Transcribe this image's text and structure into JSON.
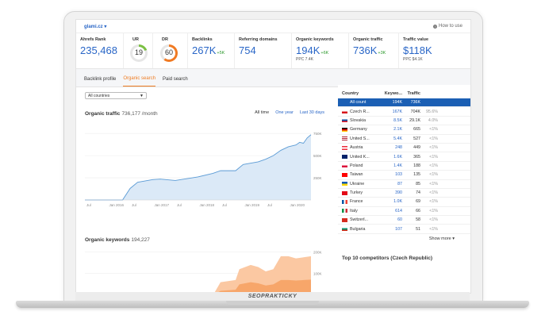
{
  "header": {
    "domain": "glami.cz",
    "how_to_use": "How to use"
  },
  "metrics": {
    "ahrefs_rank": {
      "label": "Ahrefs Rank",
      "value": "235,468"
    },
    "ur": {
      "label": "UR",
      "value": "19",
      "level": 19,
      "color": "#7bc043"
    },
    "dr": {
      "label": "DR",
      "value": "60",
      "level": 60,
      "color": "#f07a23"
    },
    "backlinks": {
      "label": "Backlinks",
      "value": "267K",
      "delta": "+5K"
    },
    "referring_domains": {
      "label": "Referring domains",
      "value": "754"
    },
    "organic_keywords": {
      "label": "Organic keywords",
      "value": "194K",
      "delta": "+6K",
      "sub": "PPC 7.4K"
    },
    "organic_traffic": {
      "label": "Organic traffic",
      "value": "736K",
      "delta": "+3K"
    },
    "traffic_value": {
      "label": "Traffic value",
      "value": "$118K",
      "sub": "PPC $4.1K"
    }
  },
  "tabs": [
    {
      "label": "Backlink profile"
    },
    {
      "label": "Organic search"
    },
    {
      "label": "Paid search"
    }
  ],
  "filter": {
    "value": "All countries"
  },
  "traffic_section": {
    "title": "Organic traffic",
    "value": "736,177 /month",
    "ranges": [
      "All time",
      "One year",
      "Last 30 days"
    ]
  },
  "keywords_section": {
    "title": "Organic keywords",
    "value": "194,227"
  },
  "chart_data": [
    {
      "type": "area",
      "title": "Organic traffic",
      "x_labels": [
        "Jul",
        "Jan 2016",
        "Jul",
        "Jan 2017",
        "Jul",
        "Jan 2018",
        "Jul",
        "Jan 2019",
        "Jul",
        "Jan 2020"
      ],
      "y_ticks": [
        "750K",
        "500K",
        "250K"
      ],
      "ylim": [
        0,
        850000
      ],
      "x": [
        0,
        6,
        10,
        12,
        14,
        18,
        20,
        24,
        30,
        34,
        36,
        40,
        42,
        46,
        48,
        50,
        52,
        54,
        56,
        57,
        58,
        59,
        60
      ],
      "values": [
        0,
        0,
        0,
        130000,
        200000,
        230000,
        235000,
        220000,
        260000,
        300000,
        330000,
        330000,
        400000,
        430000,
        460000,
        500000,
        560000,
        600000,
        620000,
        650000,
        640000,
        700000,
        736000
      ],
      "color": "#5b9bd5"
    },
    {
      "type": "area",
      "title": "Organic keywords",
      "y_ticks": [
        "200K",
        "100K"
      ],
      "ylim": [
        0,
        220000
      ],
      "x": [
        0,
        34,
        36,
        40,
        41,
        44,
        46,
        48,
        50,
        52,
        54,
        56,
        58,
        60
      ],
      "series": [
        {
          "name": "",
          "values": [
            0,
            0,
            60000,
            70000,
            120000,
            140000,
            130000,
            110000,
            120000,
            180000,
            180000,
            170000,
            175000,
            180000
          ],
          "color": "#fbc8a2"
        },
        {
          "name": "",
          "values": [
            0,
            0,
            20000,
            25000,
            50000,
            60000,
            55000,
            45000,
            50000,
            70000,
            70000,
            68000,
            70000,
            72000
          ],
          "color": "#f7a66a"
        }
      ]
    }
  ],
  "country_table": {
    "headers": {
      "country": "Country",
      "keywords": "Keywo...",
      "traffic": "Traffic"
    },
    "rows": [
      {
        "name": "All count",
        "kw": "194K",
        "tr": "736K",
        "pct": "",
        "flag": "none"
      },
      {
        "name": "Czech R...",
        "kw": "167K",
        "tr": "704K",
        "pct": "95.6%",
        "flag": "cz"
      },
      {
        "name": "Slovakia",
        "kw": "8.5K",
        "tr": "29.1K",
        "pct": "4.0%",
        "flag": "sk"
      },
      {
        "name": "Germany",
        "kw": "2.1K",
        "tr": "665",
        "pct": "<1%",
        "flag": "de"
      },
      {
        "name": "United S...",
        "kw": "5.4K",
        "tr": "527",
        "pct": "<1%",
        "flag": "us"
      },
      {
        "name": "Austria",
        "kw": "248",
        "tr": "449",
        "pct": "<1%",
        "flag": "at"
      },
      {
        "name": "United K...",
        "kw": "1.6K",
        "tr": "365",
        "pct": "<1%",
        "flag": "uk"
      },
      {
        "name": "Poland",
        "kw": "1.4K",
        "tr": "188",
        "pct": "<1%",
        "flag": "pl"
      },
      {
        "name": "Taiwan",
        "kw": "103",
        "tr": "135",
        "pct": "<1%",
        "flag": "tw"
      },
      {
        "name": "Ukraine",
        "kw": "87",
        "tr": "85",
        "pct": "<1%",
        "flag": "ua"
      },
      {
        "name": "Turkey",
        "kw": "390",
        "tr": "74",
        "pct": "<1%",
        "flag": "tr"
      },
      {
        "name": "France",
        "kw": "1.0K",
        "tr": "69",
        "pct": "<1%",
        "flag": "fr"
      },
      {
        "name": "Italy",
        "kw": "614",
        "tr": "66",
        "pct": "<1%",
        "flag": "it"
      },
      {
        "name": "Switzerl...",
        "kw": "60",
        "tr": "58",
        "pct": "<1%",
        "flag": "ch"
      },
      {
        "name": "Bulgaria",
        "kw": "107",
        "tr": "51",
        "pct": "<1%",
        "flag": "bg"
      }
    ],
    "show_more": "Show more ▾",
    "competitors_title": "Top 10 competitors (Czech Republic)"
  },
  "brand": "SEOPRAKTICKY"
}
